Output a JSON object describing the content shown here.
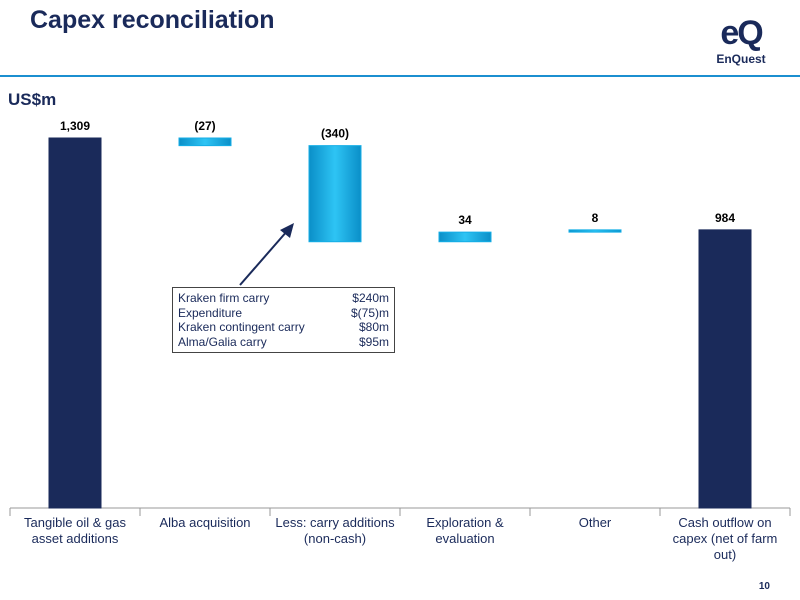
{
  "chart_data": {
    "type": "waterfall",
    "title": "Capex reconciliation",
    "unit_label": "US$m",
    "categories": [
      "Tangible oil & gas asset additions",
      "Alba acquisition",
      "Less: carry additions (non-cash)",
      "Exploration & evaluation",
      "Other",
      "Cash outflow on capex (net of farm out)"
    ],
    "values": [
      1309,
      -27,
      -340,
      34,
      8,
      984
    ],
    "value_labels": [
      "1,309",
      "(27)",
      "(340)",
      "34",
      "8",
      "984"
    ],
    "measure": [
      "absolute",
      "relative",
      "relative",
      "relative",
      "relative",
      "total"
    ],
    "total_color": "#1a2a5a",
    "delta_color": "#14aee6",
    "annotation": {
      "rows": [
        [
          "Kraken firm carry",
          "$240m"
        ],
        [
          "Expenditure",
          "$(75)m"
        ],
        [
          "Kraken contingent carry",
          "$80m"
        ],
        [
          "Alma/Galia carry",
          "$95m"
        ]
      ]
    }
  },
  "logo": {
    "mark": "eQ",
    "word": "EnQuest"
  },
  "page_number": "10"
}
